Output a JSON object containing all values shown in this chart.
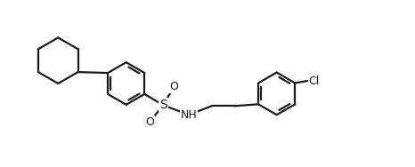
{
  "background_color": "#ffffff",
  "line_color": "#1a1a1a",
  "line_width": 1.6,
  "figsize": [
    4.66,
    1.88
  ],
  "dpi": 100,
  "xlim": [
    0,
    9.32
  ],
  "ylim": [
    0,
    3.76
  ]
}
